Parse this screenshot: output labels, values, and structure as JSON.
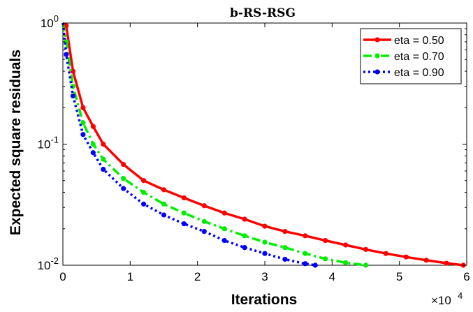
{
  "chart_data": {
    "type": "line",
    "title": "b-RS-RSG",
    "xlabel": "Iterations",
    "ylabel": "Expected square residuals",
    "x_multiplier_label": "×10",
    "x_multiplier_exponent": "4",
    "xlim": [
      0,
      60000
    ],
    "ylim": [
      0.01,
      1
    ],
    "y_scale": "log",
    "x_ticks": [
      0,
      10000,
      20000,
      30000,
      40000,
      50000,
      60000
    ],
    "x_tick_labels": [
      "0",
      "1",
      "2",
      "3",
      "4",
      "5",
      "6"
    ],
    "y_ticks": [
      {
        "value": 1,
        "base": "10",
        "exp": "0"
      },
      {
        "value": 0.1,
        "base": "10",
        "exp": "-1"
      },
      {
        "value": 0.01,
        "base": "10",
        "exp": "-2"
      }
    ],
    "grid": false,
    "legend_position": "top-right",
    "series": [
      {
        "name": "eta = 0.50",
        "color": "#ff0000",
        "dash": "solid",
        "x": [
          500,
          1500,
          3000,
          4500,
          6000,
          9000,
          12000,
          15000,
          18000,
          21000,
          24000,
          27000,
          30000,
          33000,
          36000,
          39000,
          42000,
          45000,
          48000,
          51000,
          54000,
          57000,
          59500
        ],
        "y": [
          0.95,
          0.4,
          0.2,
          0.14,
          0.1,
          0.068,
          0.05,
          0.042,
          0.036,
          0.031,
          0.027,
          0.024,
          0.021,
          0.019,
          0.0175,
          0.016,
          0.0147,
          0.0135,
          0.0125,
          0.0117,
          0.011,
          0.0104,
          0.01
        ]
      },
      {
        "name": "eta = 0.70",
        "color": "#00ee00",
        "dash": "dashdot",
        "x": [
          500,
          1500,
          3000,
          4500,
          6000,
          9000,
          12000,
          15000,
          18000,
          21000,
          24000,
          27000,
          30000,
          33000,
          36000,
          39000,
          42000,
          45000
        ],
        "y": [
          0.7,
          0.3,
          0.15,
          0.1,
          0.075,
          0.052,
          0.04,
          0.032,
          0.027,
          0.023,
          0.02,
          0.0175,
          0.0155,
          0.014,
          0.0125,
          0.0113,
          0.0105,
          0.01
        ]
      },
      {
        "name": "eta = 0.90",
        "color": "#0000ff",
        "dash": "dotted",
        "x": [
          500,
          1500,
          3000,
          4500,
          6000,
          9000,
          12000,
          15000,
          18000,
          21000,
          24000,
          27000,
          30000,
          33000,
          36000,
          37500
        ],
        "y": [
          0.55,
          0.25,
          0.12,
          0.085,
          0.062,
          0.043,
          0.032,
          0.026,
          0.022,
          0.019,
          0.016,
          0.014,
          0.0125,
          0.0112,
          0.0103,
          0.01
        ]
      }
    ]
  }
}
